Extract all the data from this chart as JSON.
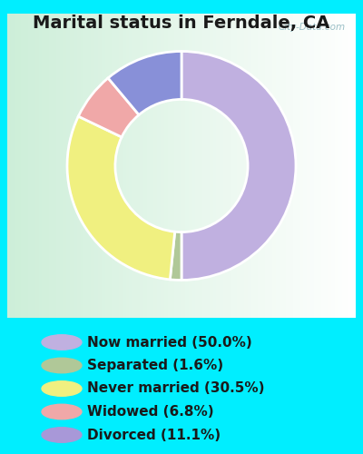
{
  "title": "Marital status in Ferndale, CA",
  "slices": [
    50.0,
    1.6,
    30.5,
    6.8,
    11.1
  ],
  "labels": [
    "Now married (50.0%)",
    "Separated (1.6%)",
    "Never married (30.5%)",
    "Widowed (6.8%)",
    "Divorced (11.1%)"
  ],
  "pie_colors": [
    "#c0b0e0",
    "#b0c898",
    "#f0f080",
    "#f0a8a8",
    "#8890d8"
  ],
  "legend_colors": [
    "#c0b0e0",
    "#b0c898",
    "#f0f080",
    "#f0a8a8",
    "#a898d8"
  ],
  "bg_cyan": "#00eeff",
  "bg_chart_topleft": "#c8e8d0",
  "bg_chart_center": "#e8f8f0",
  "bg_chart_topright": "#f0f8f8",
  "title_fontsize": 14,
  "legend_fontsize": 11,
  "watermark": "City-Data.com"
}
